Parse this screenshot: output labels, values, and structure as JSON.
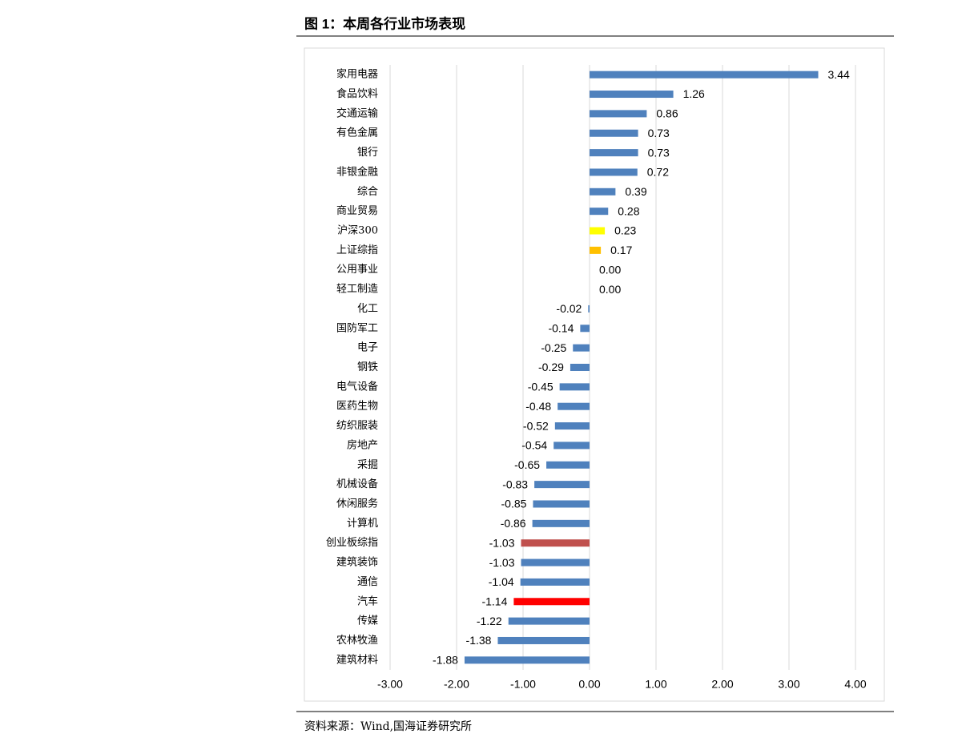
{
  "chart_data": {
    "type": "hbar",
    "title": "图 1：本周各行业市场表现",
    "source": "资料来源：Wind,国海证券研究所",
    "categories": [
      "家用电器",
      "食品饮料",
      "交通运输",
      "有色金属",
      "银行",
      "非银金融",
      "综合",
      "商业贸易",
      "沪深300",
      "上证综指",
      "公用事业",
      "轻工制造",
      "化工",
      "国防军工",
      "电子",
      "钢铁",
      "电气设备",
      "医药生物",
      "纺织服装",
      "房地产",
      "采掘",
      "机械设备",
      "休闲服务",
      "计算机",
      "创业板综指",
      "建筑装饰",
      "通信",
      "汽车",
      "传媒",
      "农林牧渔",
      "建筑材料"
    ],
    "values": [
      3.44,
      1.26,
      0.86,
      0.73,
      0.73,
      0.72,
      0.39,
      0.28,
      0.23,
      0.17,
      0,
      0,
      -0.02,
      -0.14,
      -0.25,
      -0.29,
      -0.45,
      -0.48,
      -0.52,
      -0.54,
      -0.65,
      -0.83,
      -0.85,
      -0.86,
      -1.03,
      -1.03,
      -1.04,
      -1.14,
      -1.22,
      -1.38,
      -1.88
    ],
    "value_labels": [
      "3.44",
      "1.26",
      "0.86",
      "0.73",
      "0.73",
      "0.72",
      "0.39",
      "0.28",
      "0.23",
      "0.17",
      "0.00",
      "0.00",
      "-0.02",
      "-0.14",
      "-0.25",
      "-0.29",
      "-0.45",
      "-0.48",
      "-0.52",
      "-0.54",
      "-0.65",
      "-0.83",
      "-0.85",
      "-0.86",
      "-1.03",
      "-1.03",
      "-1.04",
      "-1.14",
      "-1.22",
      "-1.38",
      "-1.88"
    ],
    "colors": [
      "#4f81bd",
      "#4f81bd",
      "#4f81bd",
      "#4f81bd",
      "#4f81bd",
      "#4f81bd",
      "#4f81bd",
      "#4f81bd",
      "#ffff00",
      "#ffc000",
      "#4f81bd",
      "#4f81bd",
      "#4f81bd",
      "#4f81bd",
      "#4f81bd",
      "#4f81bd",
      "#4f81bd",
      "#4f81bd",
      "#4f81bd",
      "#4f81bd",
      "#4f81bd",
      "#4f81bd",
      "#4f81bd",
      "#4f81bd",
      "#c0504d",
      "#4f81bd",
      "#4f81bd",
      "#ff0000",
      "#4f81bd",
      "#4f81bd",
      "#4f81bd"
    ],
    "xlim": [
      -3,
      4
    ],
    "xticks": [
      {
        "value": -3,
        "label": "-3.00"
      },
      {
        "value": -2,
        "label": "-2.00"
      },
      {
        "value": -1,
        "label": "-1.00"
      },
      {
        "value": 0,
        "label": "0.00"
      },
      {
        "value": 1,
        "label": "1.00"
      },
      {
        "value": 2,
        "label": "2.00"
      },
      {
        "value": 3,
        "label": "3.00"
      },
      {
        "value": 4,
        "label": "4.00"
      }
    ],
    "grid": true
  }
}
